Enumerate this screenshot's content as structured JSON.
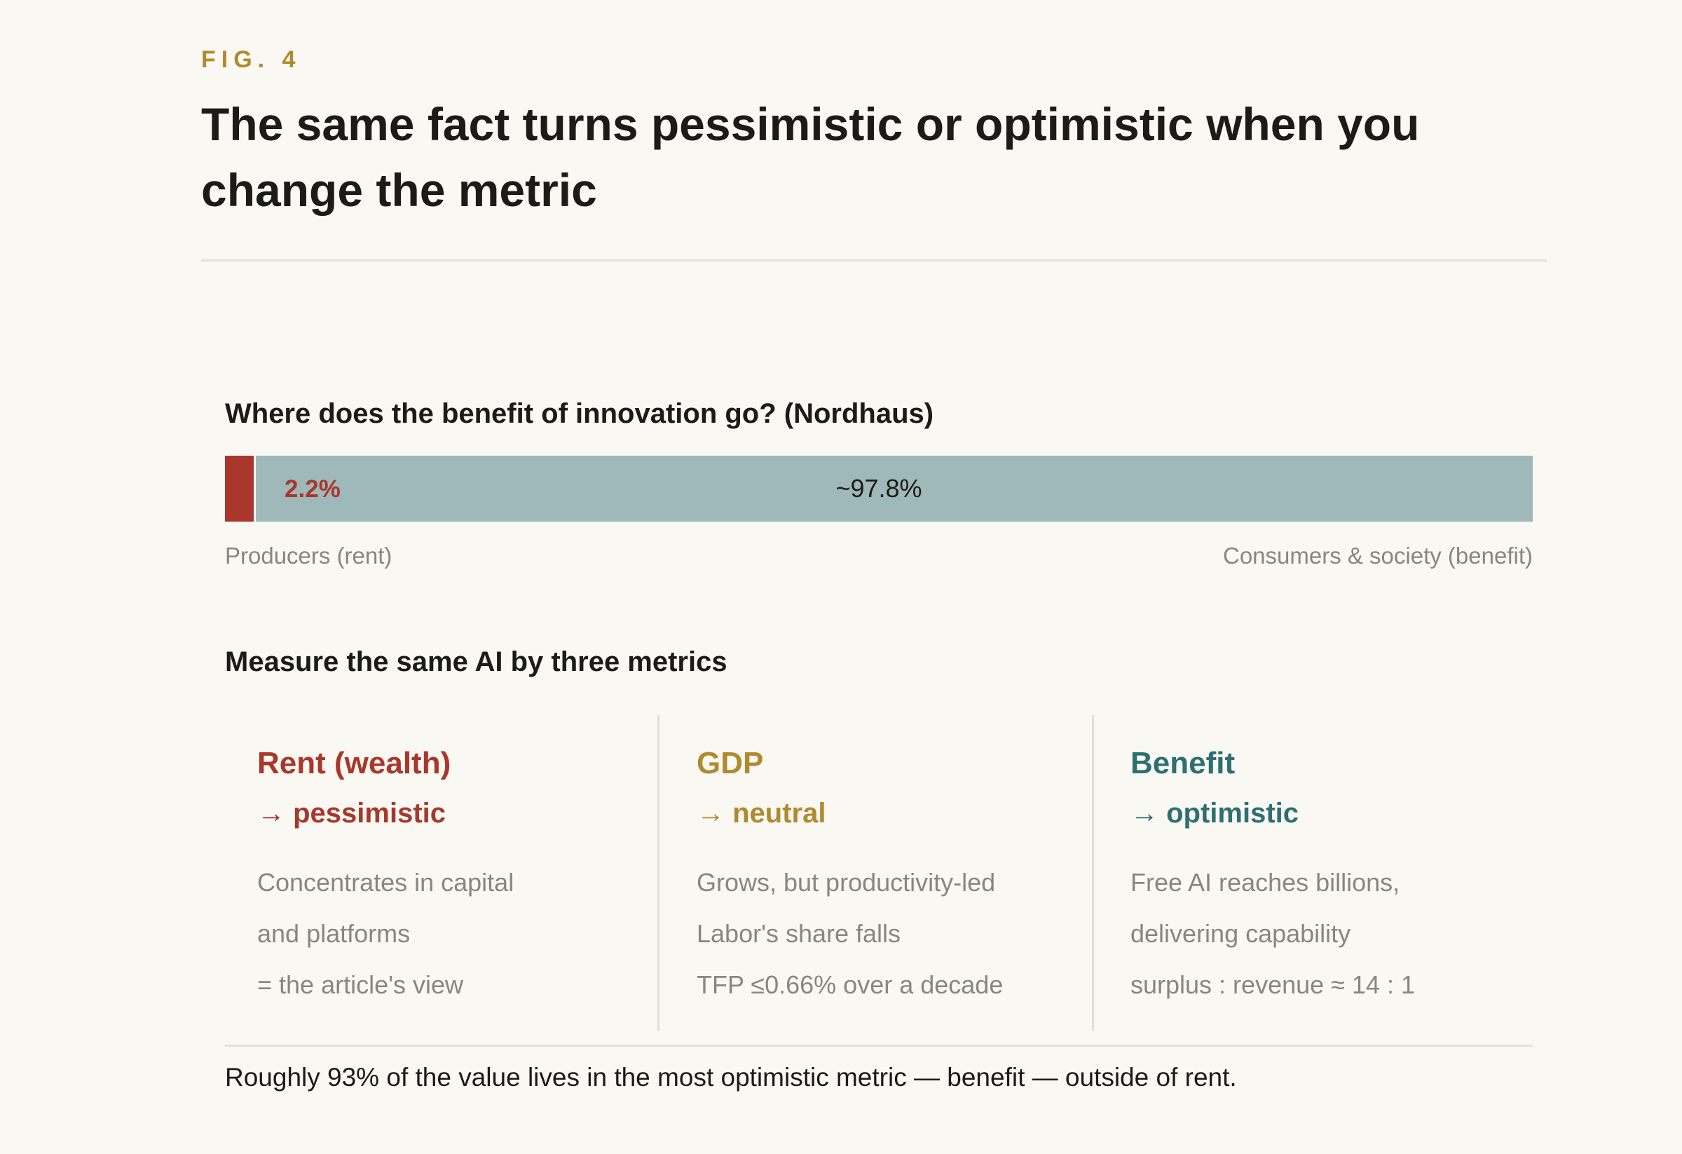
{
  "fig_label": "FIG. 4",
  "title": "The same fact turns pessimistic or optimistic when you change the metric",
  "colors": {
    "rent": "#a9372b",
    "gdp": "#b08a2e",
    "benefit": "#2e6f71",
    "bar_benefit": "#9fb8b9",
    "muted_text": "#8a867e"
  },
  "chart_data": {
    "type": "bar",
    "subtype": "stacked-horizontal",
    "title": "Where does the benefit of innovation go? (Nordhaus)",
    "categories": [
      "Producers (rent)",
      "Consumers & society (benefit)"
    ],
    "values": [
      2.2,
      97.8
    ],
    "data_labels": [
      "2.2%",
      "~97.8%"
    ],
    "xlim": [
      0,
      100
    ],
    "grid": false
  },
  "metrics": {
    "heading": "Measure the same AI by three metrics",
    "columns": [
      {
        "name": "Rent (wealth)",
        "verdict": "→ pessimistic",
        "color_key": "rent",
        "lines": [
          "Concentrates in capital",
          "and platforms",
          "= the article's view"
        ]
      },
      {
        "name": "GDP",
        "verdict": "→ neutral",
        "color_key": "gdp",
        "lines": [
          "Grows, but productivity-led",
          "Labor's share falls",
          "TFP ≤0.66% over a decade"
        ]
      },
      {
        "name": "Benefit",
        "verdict": "→ optimistic",
        "color_key": "benefit",
        "lines": [
          "Free AI reaches billions,",
          "delivering capability",
          "surplus : revenue ≈ 14 : 1"
        ]
      }
    ]
  },
  "footnote": "Roughly 93% of the value lives in the most optimistic metric — benefit — outside of rent."
}
